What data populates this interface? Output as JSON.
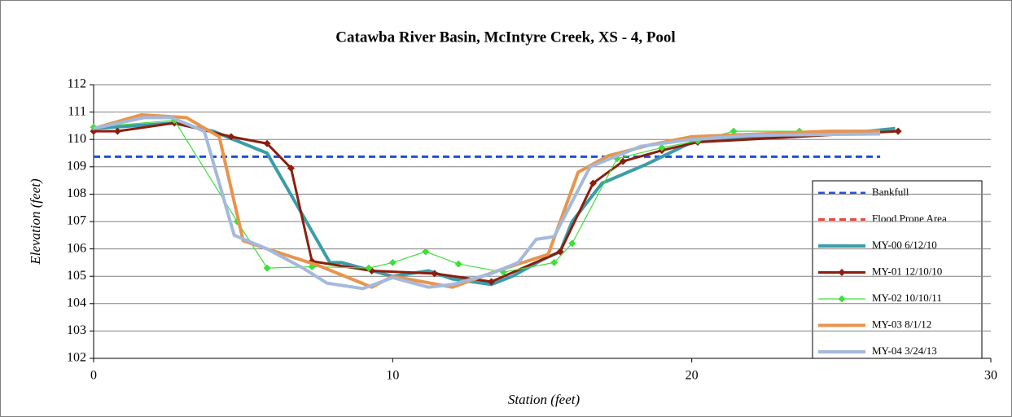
{
  "chart_data": {
    "type": "line",
    "title": "Catawba River Basin, McIntyre Creek, XS - 4, Pool",
    "x_label": "Station (feet)",
    "y_label": "Elevation (feet)",
    "xlim": [
      0,
      30
    ],
    "xticks": [
      0,
      10,
      20,
      30
    ],
    "ylim": [
      102,
      112
    ],
    "yticks": [
      102,
      103,
      104,
      105,
      106,
      107,
      108,
      109,
      110,
      111,
      112
    ],
    "grid": true,
    "legend": "right",
    "series": [
      {
        "name": "Bankfull",
        "color": "#1f4fd8",
        "dashed": true,
        "x": [
          0,
          26.3
        ],
        "values": [
          109.37,
          109.37
        ]
      },
      {
        "name": "Flood Prone Area",
        "color": "#e64a3a",
        "dashed": true,
        "x": [],
        "values": []
      },
      {
        "name": "MY-00 6/12/10",
        "color": "#3a9da8",
        "x": [
          0,
          2.7,
          4,
          5.8,
          7.9,
          8.3,
          10,
          11.2,
          12,
          13.3,
          14,
          15,
          15.6,
          16,
          17,
          18.5,
          20,
          22,
          25,
          26.8
        ],
        "values": [
          110.4,
          110.6,
          110.3,
          109.5,
          105.5,
          105.5,
          105,
          105.2,
          104.9,
          104.7,
          105,
          105.6,
          105.9,
          107,
          108.4,
          109.1,
          109.9,
          110.1,
          110.2,
          110.4
        ]
      },
      {
        "name": "MY-01 12/10/10",
        "color": "#8b1e0e",
        "marker": "diamond",
        "x": [
          0,
          0.8,
          2.7,
          4.6,
          5.8,
          6.6,
          7.3,
          9.3,
          11.4,
          13.3,
          15.6,
          16.7,
          17.7,
          19,
          20.2,
          26.9
        ],
        "values": [
          110.3,
          110.3,
          110.6,
          110.1,
          109.85,
          108.95,
          105.55,
          105.2,
          105.1,
          104.8,
          105.9,
          108.4,
          109.2,
          109.6,
          109.9,
          110.3
        ]
      },
      {
        "name": "MY-02 10/10/11",
        "color": "#3de03a",
        "marker": "diamond",
        "x": [
          0,
          2.7,
          4.8,
          5.8,
          7.3,
          9.2,
          10,
          11.1,
          12.2,
          13.7,
          15.4,
          16,
          17.5,
          19,
          20.2,
          21.4,
          23.6
        ],
        "values": [
          110.45,
          110.7,
          107,
          105.3,
          105.35,
          105.3,
          105.5,
          105.9,
          105.45,
          105.15,
          105.5,
          106.2,
          109.3,
          109.7,
          109.95,
          110.3,
          110.3
        ]
      },
      {
        "name": "MY-03 8/1/12",
        "color": "#e8944d",
        "x": [
          0,
          1.6,
          3.1,
          4.2,
          5,
          5.8,
          7.5,
          9.3,
          10,
          12,
          13.5,
          15.2,
          16.2,
          17.2,
          18.6,
          20,
          24.6,
          26.3
        ],
        "values": [
          110.4,
          110.9,
          110.8,
          110.1,
          106.3,
          106,
          105.4,
          104.6,
          105,
          104.6,
          105.2,
          105.8,
          108.8,
          109.4,
          109.8,
          110.1,
          110.3,
          110.3
        ]
      },
      {
        "name": "MY-04 3/24/13",
        "color": "#a4b9dc",
        "x": [
          0,
          1.7,
          2.6,
          3.7,
          4.7,
          5.8,
          7,
          7.8,
          9,
          10,
          11.2,
          12,
          13.3,
          14.2,
          14.8,
          15.4,
          16.6,
          18.3,
          20,
          22,
          26.3
        ],
        "values": [
          110.4,
          110.8,
          110.8,
          110.3,
          106.5,
          106,
          105.3,
          104.75,
          104.55,
          104.95,
          104.6,
          104.7,
          105.1,
          105.5,
          106.35,
          106.45,
          109,
          109.75,
          110,
          110.15,
          110.2
        ]
      }
    ]
  }
}
